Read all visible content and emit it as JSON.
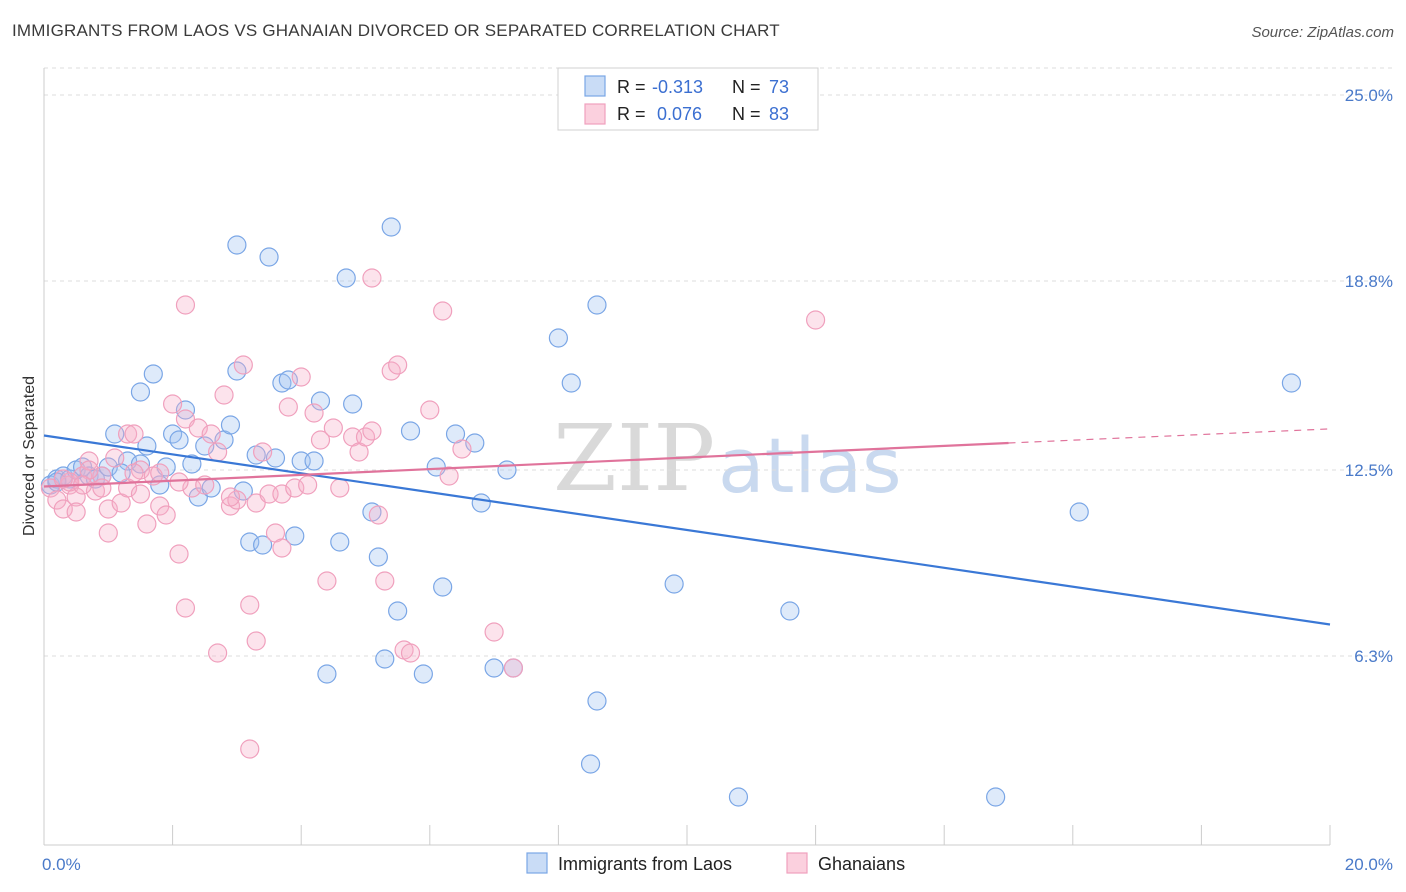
{
  "title": "IMMIGRANTS FROM LAOS VS GHANAIAN DIVORCED OR SEPARATED CORRELATION CHART",
  "source": "Source: ZipAtlas.com",
  "watermark": {
    "zip": "ZIP",
    "atlas": "atlas"
  },
  "legend": {
    "row1": {
      "r_label": "R =",
      "r_value": "-0.313",
      "n_label": "N =",
      "n_value": "73"
    },
    "row2": {
      "r_label": "R =",
      "r_value": "0.076",
      "n_label": "N =",
      "n_value": "83"
    }
  },
  "chart_data": {
    "type": "scatter",
    "title": "IMMIGRANTS FROM LAOS VS GHANAIAN DIVORCED OR SEPARATED CORRELATION CHART",
    "xlabel": "",
    "ylabel": "Divorced or Separated",
    "xlim": [
      0,
      20
    ],
    "ylim": [
      0,
      25.9
    ],
    "x_tick_labels": [
      "0.0%",
      "20.0%"
    ],
    "y_ticks": [
      6.3,
      12.5,
      18.8,
      25.0
    ],
    "y_tick_labels": [
      "6.3%",
      "12.5%",
      "18.8%",
      "25.0%"
    ],
    "grid": "horizontal dashed",
    "legend_position": "top-center",
    "series": [
      {
        "name": "Immigrants from Laos",
        "color": "#7aa6e6",
        "trend": {
          "x": [
            0,
            20
          ],
          "y": [
            13.65,
            7.35
          ],
          "style": "solid"
        },
        "points": [
          [
            0.1,
            12.0
          ],
          [
            0.2,
            12.2
          ],
          [
            0.3,
            12.3
          ],
          [
            0.4,
            12.2
          ],
          [
            0.5,
            12.5
          ],
          [
            0.6,
            12.6
          ],
          [
            0.7,
            12.3
          ],
          [
            0.8,
            12.2
          ],
          [
            0.9,
            12.3
          ],
          [
            1.0,
            12.6
          ],
          [
            1.1,
            13.7
          ],
          [
            1.3,
            12.8
          ],
          [
            1.5,
            12.7
          ],
          [
            1.6,
            13.3
          ],
          [
            1.9,
            12.6
          ],
          [
            2.0,
            13.7
          ],
          [
            2.1,
            13.5
          ],
          [
            1.7,
            15.7
          ],
          [
            1.5,
            15.1
          ],
          [
            2.2,
            14.5
          ],
          [
            2.3,
            12.7
          ],
          [
            2.4,
            11.6
          ],
          [
            2.5,
            13.3
          ],
          [
            2.6,
            11.9
          ],
          [
            2.8,
            13.5
          ],
          [
            2.9,
            14.0
          ],
          [
            3.0,
            15.8
          ],
          [
            3.1,
            11.8
          ],
          [
            3.2,
            10.1
          ],
          [
            3.3,
            13.0
          ],
          [
            3.4,
            10.0
          ],
          [
            3.6,
            12.9
          ],
          [
            3.7,
            15.4
          ],
          [
            3.8,
            15.5
          ],
          [
            3.9,
            10.3
          ],
          [
            4.0,
            12.8
          ],
          [
            4.2,
            12.8
          ],
          [
            4.3,
            14.8
          ],
          [
            4.6,
            10.1
          ],
          [
            4.8,
            14.7
          ],
          [
            5.1,
            11.1
          ],
          [
            5.2,
            9.6
          ],
          [
            5.3,
            6.2
          ],
          [
            5.5,
            7.8
          ],
          [
            5.7,
            13.8
          ],
          [
            6.1,
            12.6
          ],
          [
            6.2,
            8.6
          ],
          [
            6.4,
            13.7
          ],
          [
            6.7,
            13.4
          ],
          [
            6.8,
            11.4
          ],
          [
            7.0,
            5.9
          ],
          [
            7.2,
            12.5
          ],
          [
            7.3,
            5.9
          ],
          [
            8.0,
            16.9
          ],
          [
            8.2,
            15.4
          ],
          [
            8.6,
            18.0
          ],
          [
            8.5,
            2.7
          ],
          [
            8.6,
            4.8
          ],
          [
            9.8,
            8.7
          ],
          [
            10.8,
            1.6
          ],
          [
            11.6,
            7.8
          ],
          [
            14.8,
            1.6
          ],
          [
            16.1,
            11.1
          ],
          [
            19.4,
            15.4
          ],
          [
            3.0,
            20.0
          ],
          [
            3.5,
            19.6
          ],
          [
            4.7,
            18.9
          ],
          [
            5.4,
            20.6
          ],
          [
            5.9,
            5.7
          ],
          [
            4.4,
            5.7
          ],
          [
            1.8,
            12.0
          ],
          [
            0.2,
            12.1
          ],
          [
            1.2,
            12.4
          ]
        ]
      },
      {
        "name": "Ghanaians",
        "color": "#f0a0bd",
        "trend": {
          "x": [
            0,
            15
          ],
          "y": [
            11.95,
            13.4
          ],
          "style": "solid",
          "extension": {
            "x": [
              15,
              20
            ],
            "y": [
              13.4,
              13.87
            ],
            "style": "dashed"
          }
        },
        "points": [
          [
            0.1,
            11.9
          ],
          [
            0.2,
            11.5
          ],
          [
            0.3,
            11.2
          ],
          [
            0.4,
            12.0
          ],
          [
            0.5,
            11.6
          ],
          [
            0.6,
            12.3
          ],
          [
            0.7,
            12.8
          ],
          [
            0.8,
            11.8
          ],
          [
            0.9,
            12.3
          ],
          [
            1.0,
            11.2
          ],
          [
            1.1,
            12.9
          ],
          [
            1.2,
            11.4
          ],
          [
            1.3,
            13.7
          ],
          [
            1.4,
            13.7
          ],
          [
            1.5,
            12.5
          ],
          [
            1.6,
            10.7
          ],
          [
            1.7,
            12.3
          ],
          [
            1.8,
            11.3
          ],
          [
            1.9,
            11.0
          ],
          [
            2.0,
            14.7
          ],
          [
            2.1,
            9.7
          ],
          [
            2.2,
            14.2
          ],
          [
            2.3,
            11.9
          ],
          [
            2.4,
            13.9
          ],
          [
            2.5,
            12.0
          ],
          [
            2.6,
            13.7
          ],
          [
            2.7,
            13.1
          ],
          [
            2.8,
            15.0
          ],
          [
            2.9,
            11.3
          ],
          [
            3.0,
            11.5
          ],
          [
            3.1,
            16.0
          ],
          [
            3.2,
            8.0
          ],
          [
            3.3,
            11.4
          ],
          [
            3.4,
            13.1
          ],
          [
            3.5,
            11.7
          ],
          [
            3.6,
            10.4
          ],
          [
            3.7,
            11.7
          ],
          [
            3.8,
            14.6
          ],
          [
            3.9,
            11.9
          ],
          [
            4.0,
            15.6
          ],
          [
            4.2,
            14.4
          ],
          [
            4.3,
            13.5
          ],
          [
            4.4,
            8.8
          ],
          [
            4.5,
            13.9
          ],
          [
            4.6,
            11.9
          ],
          [
            4.8,
            13.6
          ],
          [
            4.9,
            13.1
          ],
          [
            5.0,
            13.6
          ],
          [
            5.1,
            13.8
          ],
          [
            5.2,
            11.0
          ],
          [
            5.3,
            8.8
          ],
          [
            5.4,
            15.8
          ],
          [
            5.5,
            16.0
          ],
          [
            5.6,
            6.5
          ],
          [
            5.7,
            6.4
          ],
          [
            6.0,
            14.5
          ],
          [
            6.2,
            17.8
          ],
          [
            6.3,
            12.3
          ],
          [
            6.5,
            13.2
          ],
          [
            7.0,
            7.1
          ],
          [
            7.3,
            5.9
          ],
          [
            2.2,
            7.9
          ],
          [
            2.7,
            6.4
          ],
          [
            3.2,
            3.2
          ],
          [
            3.3,
            6.8
          ],
          [
            2.2,
            18.0
          ],
          [
            5.1,
            18.9
          ],
          [
            12.0,
            17.5
          ],
          [
            0.4,
            12.1
          ],
          [
            1.3,
            11.9
          ],
          [
            1.0,
            10.4
          ],
          [
            0.7,
            12.5
          ],
          [
            0.6,
            12.0
          ],
          [
            1.8,
            12.4
          ],
          [
            0.3,
            12.2
          ],
          [
            0.9,
            11.9
          ],
          [
            0.5,
            11.1
          ],
          [
            1.5,
            11.7
          ],
          [
            2.1,
            12.1
          ],
          [
            2.9,
            11.6
          ],
          [
            3.7,
            9.9
          ],
          [
            4.1,
            12.0
          ],
          [
            1.4,
            12.4
          ]
        ]
      }
    ]
  },
  "bottom_legend": [
    {
      "label": "Immigrants from Laos",
      "color": "#7aa6e6"
    },
    {
      "label": "Ghanaians",
      "color": "#f0a0bd"
    }
  ]
}
